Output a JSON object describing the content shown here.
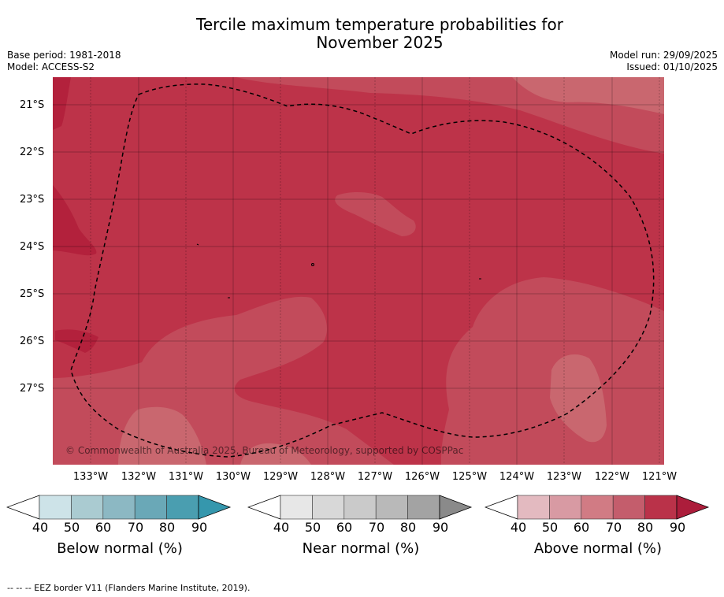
{
  "header": {
    "title_line1": "Tercile maximum temperature probabilities for",
    "title_line2": "November 2025",
    "base_period": "Base period: 1981-2018",
    "model": "Model: ACCESS-S2",
    "model_run": "Model run: 29/09/2025",
    "issued": "Issued: 01/10/2025"
  },
  "map": {
    "lat_labels": [
      "21°S",
      "22°S",
      "23°S",
      "24°S",
      "25°S",
      "26°S",
      "27°S"
    ],
    "lon_labels": [
      "133°W",
      "132°W",
      "131°W",
      "130°W",
      "129°W",
      "128°W",
      "127°W",
      "126°W",
      "125°W",
      "124°W",
      "123°W",
      "122°W",
      "121°W"
    ],
    "copyright": "© Commonwealth of Australia 2025, Bureau of Meteorology, supported by COSPPac",
    "colors": {
      "ocean_80_90": "#bd3349",
      "band_70_80": "#c24b5b",
      "band_60_70": "#c9676f",
      "band_90_plus": "#b3213c"
    }
  },
  "legend": {
    "below": {
      "label": "Below normal (%)",
      "ticks": [
        "40",
        "50",
        "60",
        "70",
        "80",
        "90"
      ],
      "colors": [
        "#cde3e8",
        "#aacbd1",
        "#8cb8c3",
        "#6aa8b7",
        "#4a9eb0",
        "#3597ad"
      ]
    },
    "near": {
      "label": "Near normal (%)",
      "ticks": [
        "40",
        "50",
        "60",
        "70",
        "80",
        "90"
      ],
      "colors": [
        "#e7e7e7",
        "#d8d8d8",
        "#cacaca",
        "#b9b9b9",
        "#a3a3a3",
        "#8a8a8a"
      ]
    },
    "above": {
      "label": "Above normal (%)",
      "ticks": [
        "40",
        "50",
        "60",
        "70",
        "80",
        "90"
      ],
      "colors": [
        "#e3bac0",
        "#d89aa3",
        "#d17b84",
        "#c45d6c",
        "#ba3249",
        "#ac1d3b"
      ]
    }
  },
  "footer": {
    "eez_note": "--  --  -- EEZ border V11 (Flanders Marine Institute, 2019)."
  }
}
